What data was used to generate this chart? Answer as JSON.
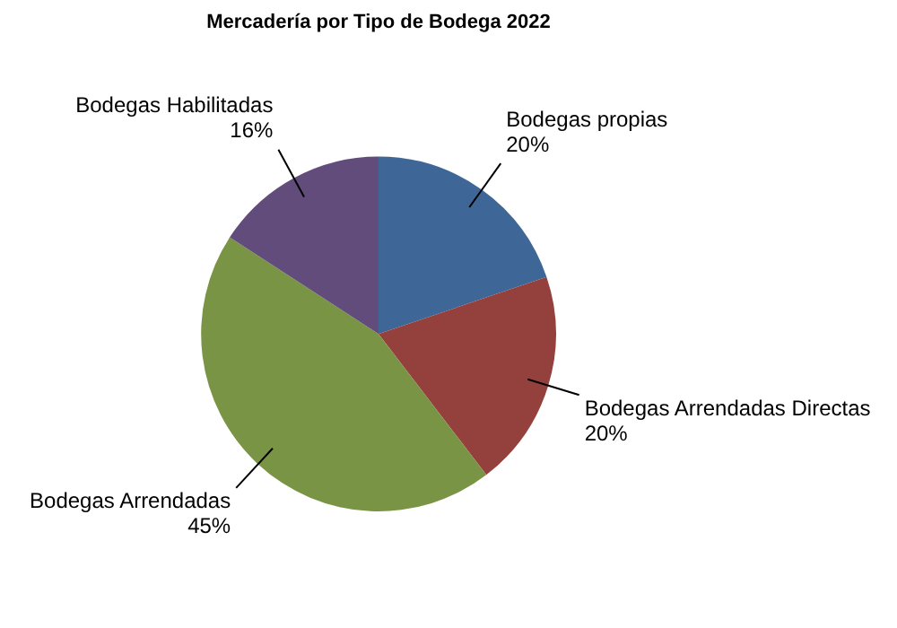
{
  "chart_data": {
    "type": "pie",
    "title": "Mercadería por Tipo de Bodega 2022",
    "categories": [
      "Bodegas propias",
      "Bodegas Arrendadas Directas",
      "Bodegas Arrendadas",
      "Bodegas Habilitadas"
    ],
    "values": [
      20,
      20,
      45,
      16
    ],
    "value_labels": [
      "20%",
      "20%",
      "45%",
      "16%"
    ],
    "colors": [
      "#3e6696",
      "#94403c",
      "#7a9445",
      "#624c7c"
    ],
    "legend": false
  }
}
